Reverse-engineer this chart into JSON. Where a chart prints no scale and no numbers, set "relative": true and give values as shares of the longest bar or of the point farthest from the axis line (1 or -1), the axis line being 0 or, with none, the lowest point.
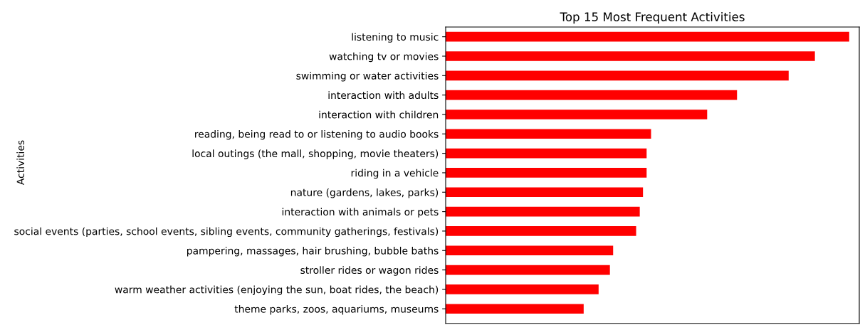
{
  "chart_data": {
    "type": "bar",
    "orientation": "horizontal",
    "relative": true,
    "title": "Top 15 Most Frequent Activities",
    "ylabel": "Activities",
    "categories": [
      "listening to music",
      "watching tv or movies",
      "swimming or water activities",
      "interaction with adults",
      "interaction with children",
      "reading, being read to or listening to audio books",
      "local outings (the mall, shopping, movie theaters)",
      "riding in a vehicle",
      "nature (gardens, lakes, parks)",
      "interaction with animals or pets",
      "social events (parties, school events, sibling events, community gatherings, festivals)",
      "pampering, massages, hair brushing, bubble baths",
      "stroller rides or wagon rides",
      "warm weather activities (enjoying the sun, boat rides, the beach)",
      "theme parks, zoos, aquariums, museums"
    ],
    "values": [
      1,
      0.915,
      0.85,
      0.722,
      0.648,
      0.509,
      0.498,
      0.498,
      0.489,
      0.481,
      0.472,
      0.415,
      0.407,
      0.379,
      0.342
    ],
    "color": "#ff0000",
    "grid": false,
    "legend": false
  }
}
